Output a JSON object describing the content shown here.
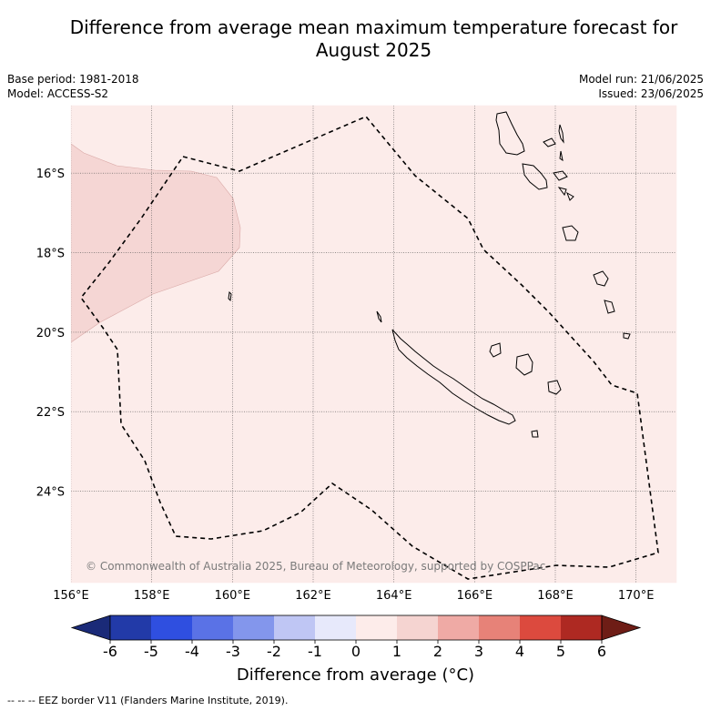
{
  "title": "Difference from average mean maximum temperature forecast for August 2025",
  "title_line1": "Difference from average mean maximum temperature forecast for",
  "title_line2": "August 2025",
  "base_period": "Base period: 1981-2018",
  "model": "Model: ACCESS-S2",
  "model_run": "Model run: 21/06/2025",
  "issued": "Issued: 23/06/2025",
  "copyright": "© Commonwealth of Australia 2025, Bureau of Meteorology, supported by COSPPac",
  "map": {
    "lon_range": [
      156,
      171
    ],
    "lat_range": [
      -26.3,
      -14.3
    ],
    "lon_ticks": [
      156,
      158,
      160,
      162,
      164,
      166,
      168,
      170
    ],
    "lon_tick_labels": [
      "156°E",
      "158°E",
      "160°E",
      "162°E",
      "164°E",
      "166°E",
      "168°E",
      "170°E"
    ],
    "lat_ticks": [
      -16,
      -18,
      -20,
      -22,
      -24
    ],
    "lat_tick_labels": [
      "16°S",
      "18°S",
      "20°S",
      "22°S",
      "24°S"
    ],
    "background_category": "0 to 1",
    "background_color": "#fcecea",
    "warm_patch_category": "1 to 2",
    "warm_patch_color": "#f5d6d4"
  },
  "colorbar": {
    "title": "Difference from average (°C)",
    "tick_labels": [
      "-6",
      "-5",
      "-4",
      "-3",
      "-2",
      "-1",
      "0",
      "1",
      "2",
      "3",
      "4",
      "5",
      "6"
    ],
    "colors": [
      "#223aa8",
      "#2f4fe0",
      "#5a72e6",
      "#8396ec",
      "#bfc6f4",
      "#e7e9fb",
      "#fdecea",
      "#f5d4d1",
      "#efaaa5",
      "#e78278",
      "#dc4a3e",
      "#ae2922"
    ],
    "extend_low_color": "#1a2a78",
    "extend_high_color": "#6e1d16"
  },
  "footer": "--  --  -- EEZ border V11 (Flanders Marine Institute, 2019)."
}
